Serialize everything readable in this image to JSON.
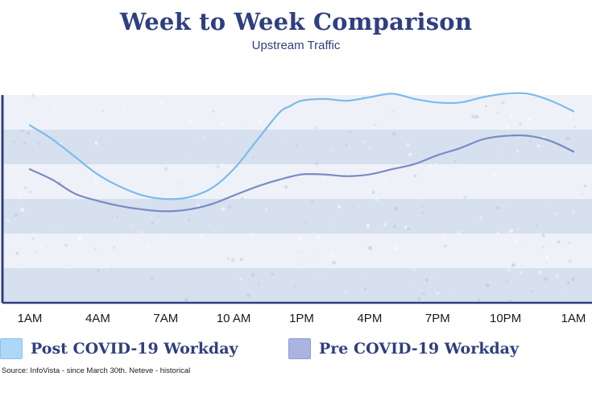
{
  "title": "Week to Week Comparison",
  "subtitle": "Upstream Traffic",
  "source": "Source: InfoVista - since March 30th. Neteve - historical",
  "colors": {
    "title": "#2f3f7f",
    "post_line": "#7cbbec",
    "pre_line": "#7b8ac4",
    "band_dark": "#d6e0ef",
    "band_light": "#eef2f8",
    "axis": "#2f3f7f"
  },
  "chart_data": {
    "type": "line",
    "title": "Week to Week Comparison",
    "subtitle": "Upstream Traffic",
    "xlabel": "",
    "ylabel": "",
    "x_ticks": [
      "1AM",
      "4AM",
      "7AM",
      "10 AM",
      "1PM",
      "4PM",
      "7PM",
      "10PM",
      "1AM"
    ],
    "x_range": [
      0,
      24
    ],
    "y_range": [
      0,
      100
    ],
    "grid": false,
    "legend_placement": "bottom",
    "series": [
      {
        "name": "Post COVID-19 Workday",
        "x": [
          0,
          1,
          2,
          3,
          4,
          5,
          6,
          7,
          8,
          9,
          10,
          11,
          11.5,
          12,
          13,
          14,
          15,
          16,
          17,
          18,
          19,
          20,
          21,
          22,
          23,
          24
        ],
        "y": [
          80,
          72,
          62,
          52,
          45,
          40,
          38,
          39,
          44,
          55,
          71,
          87,
          91,
          94,
          95,
          94,
          96,
          98,
          95,
          93,
          93,
          96,
          98,
          98,
          94,
          88
        ]
      },
      {
        "name": "Pre COVID-19 Workday",
        "x": [
          0,
          1,
          2,
          3,
          4,
          5,
          6,
          7,
          8,
          9,
          10,
          11,
          12,
          13,
          14,
          15,
          16,
          17,
          18,
          19,
          20,
          21,
          22,
          23,
          24
        ],
        "y": [
          55,
          49,
          41,
          37,
          34,
          32,
          31,
          32,
          35,
          40,
          45,
          49,
          52,
          52,
          51,
          52,
          55,
          58,
          63,
          67,
          72,
          74,
          74,
          71,
          65
        ]
      }
    ]
  },
  "legend": [
    {
      "label": "Post COVID-19 Workday"
    },
    {
      "label": "Pre COVID-19 Workday"
    }
  ]
}
